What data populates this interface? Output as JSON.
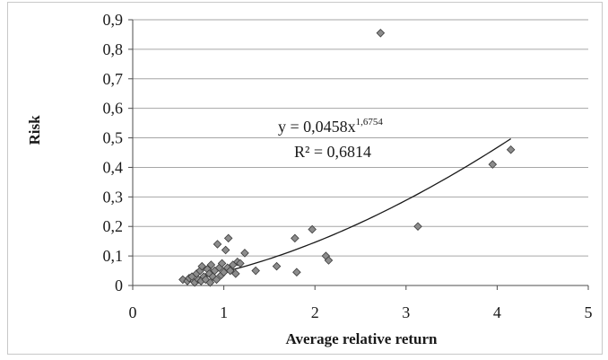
{
  "chart_data": {
    "type": "scatter",
    "title": "",
    "xlabel": "Average relative return",
    "ylabel": "Risk",
    "xlim": [
      0,
      5
    ],
    "ylim": [
      0,
      0.9
    ],
    "x_ticks": [
      "0",
      "1",
      "2",
      "3",
      "4",
      "5"
    ],
    "y_ticks": [
      "0",
      "0,1",
      "0,2",
      "0,3",
      "0,4",
      "0,5",
      "0,6",
      "0,7",
      "0,8",
      "0,9"
    ],
    "grid": "horizontal",
    "marker": "diamond",
    "marker_color": "#8c8c8c",
    "line_color": "#1a1a1a",
    "trendline": {
      "type": "power",
      "a": 0.0458,
      "b": 1.6754,
      "x_range": [
        1.0,
        4.15
      ],
      "equation_main": "y = 0,0458x",
      "equation_exponent": "1,6754",
      "r_squared": "R² = 0,6814"
    },
    "points": [
      {
        "x": 0.55,
        "y": 0.02
      },
      {
        "x": 0.6,
        "y": 0.015
      },
      {
        "x": 0.62,
        "y": 0.025
      },
      {
        "x": 0.65,
        "y": 0.03
      },
      {
        "x": 0.68,
        "y": 0.01
      },
      {
        "x": 0.7,
        "y": 0.04
      },
      {
        "x": 0.72,
        "y": 0.02
      },
      {
        "x": 0.74,
        "y": 0.05
      },
      {
        "x": 0.75,
        "y": 0.015
      },
      {
        "x": 0.76,
        "y": 0.065
      },
      {
        "x": 0.78,
        "y": 0.03
      },
      {
        "x": 0.8,
        "y": 0.02
      },
      {
        "x": 0.82,
        "y": 0.055
      },
      {
        "x": 0.84,
        "y": 0.04
      },
      {
        "x": 0.85,
        "y": 0.01
      },
      {
        "x": 0.86,
        "y": 0.07
      },
      {
        "x": 0.88,
        "y": 0.03
      },
      {
        "x": 0.9,
        "y": 0.05
      },
      {
        "x": 0.92,
        "y": 0.02
      },
      {
        "x": 0.93,
        "y": 0.14
      },
      {
        "x": 0.95,
        "y": 0.06
      },
      {
        "x": 0.97,
        "y": 0.035
      },
      {
        "x": 0.98,
        "y": 0.075
      },
      {
        "x": 1.0,
        "y": 0.045
      },
      {
        "x": 1.02,
        "y": 0.12
      },
      {
        "x": 1.04,
        "y": 0.06
      },
      {
        "x": 1.05,
        "y": 0.16
      },
      {
        "x": 1.07,
        "y": 0.05
      },
      {
        "x": 1.1,
        "y": 0.07
      },
      {
        "x": 1.13,
        "y": 0.04
      },
      {
        "x": 1.15,
        "y": 0.08
      },
      {
        "x": 1.18,
        "y": 0.075
      },
      {
        "x": 1.23,
        "y": 0.11
      },
      {
        "x": 1.35,
        "y": 0.05
      },
      {
        "x": 1.58,
        "y": 0.065
      },
      {
        "x": 1.78,
        "y": 0.16
      },
      {
        "x": 1.8,
        "y": 0.045
      },
      {
        "x": 1.97,
        "y": 0.19
      },
      {
        "x": 2.12,
        "y": 0.1
      },
      {
        "x": 2.15,
        "y": 0.085
      },
      {
        "x": 2.72,
        "y": 0.855
      },
      {
        "x": 3.13,
        "y": 0.2
      },
      {
        "x": 3.95,
        "y": 0.41
      },
      {
        "x": 4.15,
        "y": 0.46
      }
    ]
  }
}
